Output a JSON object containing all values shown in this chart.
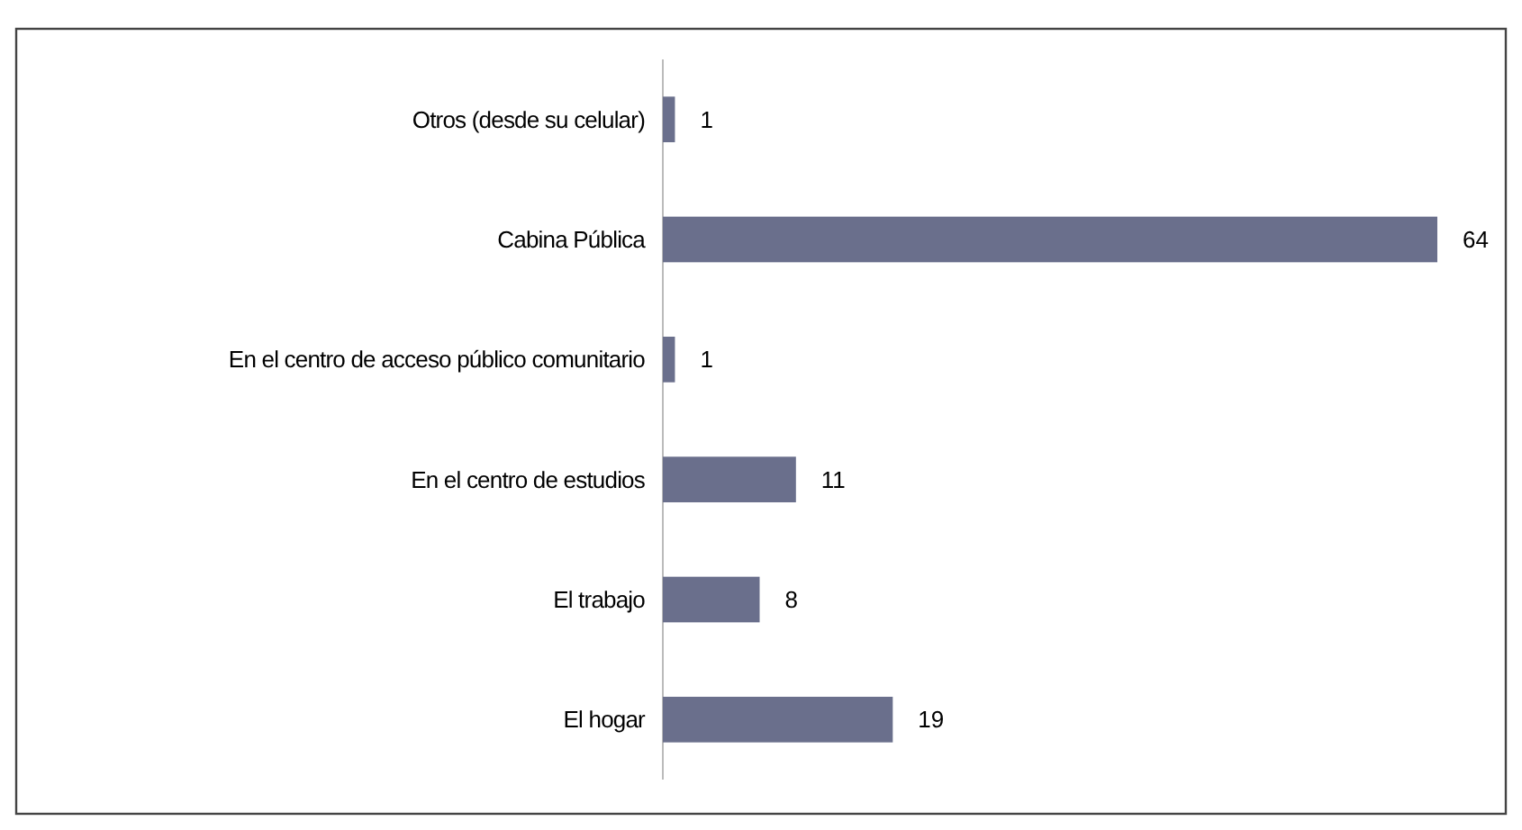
{
  "chart_data": {
    "type": "bar",
    "orientation": "horizontal",
    "categories": [
      "Otros (desde su celular)",
      "Cabina Pública",
      "En el centro de acceso público comunitario",
      "En el centro de estudios",
      "El trabajo",
      "El hogar"
    ],
    "values": [
      1,
      64,
      1,
      11,
      8,
      19
    ],
    "color": "#6a6f8c",
    "data_labels": true
  }
}
